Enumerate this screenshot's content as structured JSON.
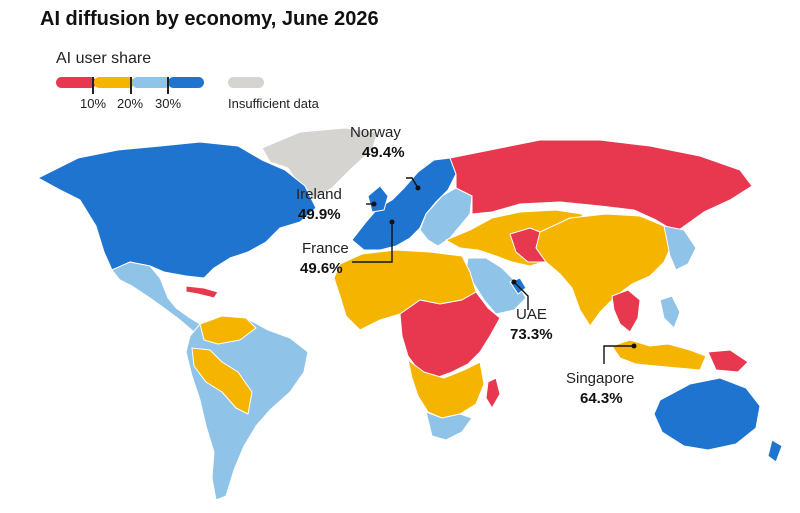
{
  "title": "AI diffusion by economy, June 2026",
  "legend": {
    "title": "AI user share",
    "ticks": [
      "10%",
      "20%",
      "30%"
    ],
    "insufficient_label": "Insufficient data",
    "colors": {
      "below_10": "#e8384f",
      "10_to_20": "#f5b400",
      "20_to_30": "#8fc3e8",
      "above_30": "#1f74d0",
      "insufficient": "#d6d4d0"
    }
  },
  "callouts": [
    {
      "name": "Norway",
      "value": "49.4%"
    },
    {
      "name": "Ireland",
      "value": "49.9%"
    },
    {
      "name": "France",
      "value": "49.6%"
    },
    {
      "name": "UAE",
      "value": "73.3%"
    },
    {
      "name": "Singapore",
      "value": "64.3%"
    }
  ],
  "regions": {
    "north_america": "above_30",
    "greenland": "insufficient",
    "mexico_central_america": "20_to_30",
    "cuba_haiti": "below_10",
    "colombia_venezuela": "10_to_20",
    "peru_bolivia_paraguay": "10_to_20",
    "brazil_southern_cone": "20_to_30",
    "western_europe": "above_30",
    "eastern_europe_balkans": "20_to_30",
    "russia": "below_10",
    "turkey_iran_central_asia": "10_to_20",
    "afghanistan": "below_10",
    "middle_east": "20_to_30",
    "uae_israel": "above_30",
    "north_africa_sahel": "10_to_20",
    "central_east_africa": "below_10",
    "southern_africa": "10_to_20",
    "south_africa": "20_to_30",
    "south_asia_china": "10_to_20",
    "mongolia_korea_japan": "20_to_30",
    "southeast_asia_mainland": "below_10",
    "indonesia": "10_to_20",
    "papua_new_guinea": "below_10",
    "australia_nz": "above_30",
    "philippines_east_asia": "20_to_30"
  }
}
